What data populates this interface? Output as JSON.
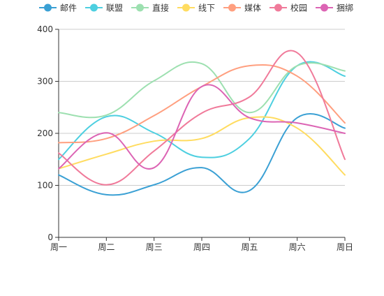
{
  "chart_data": {
    "type": "line",
    "smooth": true,
    "categories": [
      "周一",
      "周二",
      "周三",
      "周四",
      "周五",
      "周六",
      "周日"
    ],
    "ylim": [
      0,
      400
    ],
    "yticks": [
      0,
      100,
      200,
      300,
      400
    ],
    "grid": true,
    "legend_position": "top",
    "series": [
      {
        "name": "邮件",
        "color": "#3aa0d4",
        "values": [
          120,
          82,
          101,
          134,
          90,
          230,
          210
        ]
      },
      {
        "name": "联盟",
        "color": "#4dcfe0",
        "values": [
          150,
          232,
          201,
          154,
          190,
          330,
          310
        ]
      },
      {
        "name": "直接",
        "color": "#9de0b0",
        "values": [
          240,
          235,
          301,
          334,
          240,
          330,
          320
        ]
      },
      {
        "name": "线下",
        "color": "#ffdc60",
        "values": [
          132,
          160,
          185,
          190,
          230,
          210,
          120
        ]
      },
      {
        "name": "媒体",
        "color": "#ff9f7f",
        "values": [
          182,
          190,
          234,
          290,
          330,
          310,
          220
        ]
      },
      {
        "name": "校园",
        "color": "#f07a9a",
        "values": [
          162,
          101,
          166,
          239,
          270,
          355,
          150
        ]
      },
      {
        "name": "捆绑",
        "color": "#dc64b4",
        "values": [
          132,
          201,
          134,
          290,
          230,
          220,
          200
        ]
      }
    ]
  }
}
